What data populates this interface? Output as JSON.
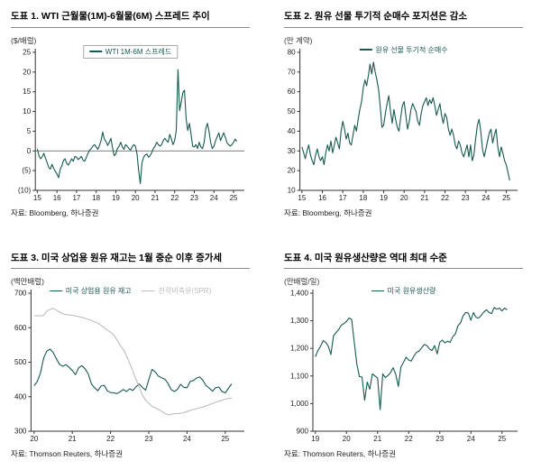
{
  "colors": {
    "accent_green": "#17594e",
    "spr_gray": "#bdbdbd",
    "axis": "#333333",
    "zero_line": "#555555"
  },
  "chart_data": [
    {
      "type": "line",
      "title": "도표 1. WTI 근월물(1M)-6월물(6M) 스프레드 추이",
      "unit": "($/배럴)",
      "source": "자료: Bloomberg, 하나증권",
      "legend": [
        {
          "label": "WTI 1M-6M 스프레드",
          "color": "#17594e"
        }
      ],
      "legend_box": true,
      "xlabel": "",
      "ylabel": "($/배럴)",
      "grid": false,
      "legend_position": "top-center",
      "ylim": [
        -10,
        25
      ],
      "yticks": [
        {
          "v": -10,
          "label": "(10)"
        },
        {
          "v": -5,
          "label": "(5)"
        },
        {
          "v": 0,
          "label": "0"
        },
        {
          "v": 5,
          "label": "5"
        },
        {
          "v": 10,
          "label": "10"
        },
        {
          "v": 15,
          "label": "15"
        },
        {
          "v": 20,
          "label": "20"
        },
        {
          "v": 25,
          "label": "25"
        }
      ],
      "xlim": [
        2014.9,
        2025.55
      ],
      "xticks": [
        {
          "v": 2015,
          "label": "15"
        },
        {
          "v": 2016,
          "label": "16"
        },
        {
          "v": 2017,
          "label": "17"
        },
        {
          "v": 2018,
          "label": "18"
        },
        {
          "v": 2019,
          "label": "19"
        },
        {
          "v": 2020,
          "label": "20"
        },
        {
          "v": 2021,
          "label": "21"
        },
        {
          "v": 2022,
          "label": "22"
        },
        {
          "v": 2023,
          "label": "23"
        },
        {
          "v": 2024,
          "label": "24"
        },
        {
          "v": 2025,
          "label": "25"
        }
      ],
      "zero_line": true,
      "series": [
        {
          "name": "WTI 1M-6M 스프레드",
          "color": "#17594e",
          "x_start": 2015.0,
          "x_step": 0.08333,
          "values": [
            0.5,
            -1.2,
            -2.0,
            -1.5,
            -0.6,
            -1.8,
            -3.0,
            -4.2,
            -4.6,
            -3.4,
            -4.4,
            -5.2,
            -5.8,
            -6.8,
            -4.6,
            -3.8,
            -2.4,
            -2.0,
            -3.2,
            -3.6,
            -2.8,
            -2.0,
            -2.6,
            -1.4,
            -1.6,
            -2.2,
            -1.8,
            -1.4,
            -2.4,
            -2.6,
            -1.6,
            -0.6,
            0.2,
            0.6,
            1.2,
            1.6,
            1.0,
            0.4,
            1.4,
            2.6,
            4.8,
            3.0,
            2.4,
            1.4,
            2.2,
            3.2,
            0.8,
            -1.2,
            -0.8,
            0.6,
            1.2,
            2.2,
            1.0,
            0.4,
            1.6,
            1.2,
            0.6,
            0.2,
            1.0,
            1.6,
            1.2,
            -0.8,
            -5.0,
            -8.3,
            -3.0,
            -1.6,
            -1.0,
            -0.8,
            -1.6,
            -1.2,
            -0.4,
            0.6,
            1.2,
            2.2,
            1.6,
            1.2,
            1.6,
            2.6,
            3.2,
            2.6,
            2.2,
            4.2,
            3.0,
            1.6,
            2.6,
            5.2,
            20.6,
            10.2,
            12.4,
            14.8,
            15.4,
            8.2,
            5.2,
            7.0,
            4.2,
            1.2,
            1.0,
            1.6,
            0.6,
            2.2,
            1.0,
            0.6,
            2.2,
            5.6,
            7.0,
            5.0,
            2.2,
            0.6,
            1.2,
            2.6,
            3.6,
            4.6,
            2.6,
            3.6,
            4.6,
            3.4,
            2.0,
            1.6,
            1.2,
            1.6,
            2.2,
            3.0,
            2.4
          ]
        }
      ]
    },
    {
      "type": "line",
      "title": "도표 2. 원유 선물 투기적 순매수 포지션은 감소",
      "unit": "(만 계약)",
      "source": "자료: Bloomberg, 하나증권",
      "legend": [
        {
          "label": "원유 선물 투기적 순매수",
          "color": "#17594e"
        }
      ],
      "legend_box": false,
      "xlabel": "",
      "ylabel": "(만 계약)",
      "grid": false,
      "legend_position": "top-center",
      "ylim": [
        10,
        80
      ],
      "yticks": [
        {
          "v": 10,
          "label": "10"
        },
        {
          "v": 20,
          "label": "20"
        },
        {
          "v": 30,
          "label": "30"
        },
        {
          "v": 40,
          "label": "40"
        },
        {
          "v": 50,
          "label": "50"
        },
        {
          "v": 60,
          "label": "60"
        },
        {
          "v": 70,
          "label": "70"
        },
        {
          "v": 80,
          "label": "80"
        }
      ],
      "xlim": [
        2014.9,
        2025.55
      ],
      "xticks": [
        {
          "v": 2015,
          "label": "15"
        },
        {
          "v": 2016,
          "label": "16"
        },
        {
          "v": 2017,
          "label": "17"
        },
        {
          "v": 2018,
          "label": "18"
        },
        {
          "v": 2019,
          "label": "19"
        },
        {
          "v": 2020,
          "label": "20"
        },
        {
          "v": 2021,
          "label": "21"
        },
        {
          "v": 2022,
          "label": "22"
        },
        {
          "v": 2023,
          "label": "23"
        },
        {
          "v": 2024,
          "label": "24"
        },
        {
          "v": 2025,
          "label": "25"
        }
      ],
      "zero_line": false,
      "series": [
        {
          "name": "원유 선물 투기적 순매수",
          "color": "#17594e",
          "x_start": 2015.0,
          "x_step": 0.08333,
          "values": [
            32,
            29,
            26,
            30,
            33,
            28,
            25,
            23,
            28,
            31,
            27,
            25,
            27,
            23,
            29,
            33,
            30,
            35,
            29,
            33,
            37,
            34,
            31,
            40,
            45,
            41,
            36,
            39,
            34,
            33,
            38,
            43,
            40,
            46,
            51,
            55,
            62,
            66,
            63,
            68,
            74,
            69,
            75,
            70,
            66,
            61,
            52,
            42,
            43,
            49,
            54,
            58,
            50,
            44,
            51,
            46,
            42,
            40,
            47,
            53,
            55,
            48,
            41,
            45,
            51,
            54,
            52,
            50,
            45,
            43,
            49,
            53,
            55,
            57,
            53,
            56,
            54,
            57,
            53,
            48,
            51,
            54,
            48,
            44,
            49,
            47,
            41,
            38,
            41,
            38,
            33,
            31,
            35,
            33,
            29,
            27,
            30,
            33,
            27,
            33,
            25,
            28,
            36,
            43,
            46,
            40,
            31,
            27,
            31,
            35,
            39,
            41,
            34,
            38,
            41,
            32,
            27,
            32,
            29,
            25,
            23,
            19,
            15
          ]
        }
      ]
    },
    {
      "type": "line",
      "title": "도표 3. 미국 상업용 원유 재고는 1월 중순 이후 증가세",
      "unit": "(백만배럴)",
      "source": "자료: Thomson Reuters, 하나증권",
      "legend": [
        {
          "label": "미국 상업용 원유 재고",
          "color": "#17594e"
        },
        {
          "label": "전략비축유(SPR)",
          "color": "#bdbdbd"
        }
      ],
      "legend_box": false,
      "xlabel": "",
      "ylabel": "(백만배럴)",
      "grid": false,
      "legend_position": "top-center",
      "ylim": [
        300,
        700
      ],
      "yticks": [
        {
          "v": 300,
          "label": "300"
        },
        {
          "v": 400,
          "label": "400"
        },
        {
          "v": 500,
          "label": "500"
        },
        {
          "v": 600,
          "label": "600"
        },
        {
          "v": 700,
          "label": "700"
        }
      ],
      "xlim": [
        2019.92,
        2025.5
      ],
      "xticks": [
        {
          "v": 2020,
          "label": "20"
        },
        {
          "v": 2021,
          "label": "21"
        },
        {
          "v": 2022,
          "label": "22"
        },
        {
          "v": 2023,
          "label": "23"
        },
        {
          "v": 2024,
          "label": "24"
        },
        {
          "v": 2025,
          "label": "25"
        }
      ],
      "zero_line": false,
      "series": [
        {
          "name": "미국 상업용 원유 재고",
          "color": "#17594e",
          "x_start": 2020.0,
          "x_step": 0.08333,
          "values": [
            432,
            444,
            469,
            512,
            532,
            538,
            528,
            510,
            494,
            488,
            493,
            485,
            476,
            464,
            484,
            490,
            481,
            466,
            437,
            426,
            417,
            431,
            433,
            417,
            412,
            411,
            409,
            414,
            421,
            415,
            423,
            418,
            429,
            437,
            427,
            419,
            449,
            479,
            472,
            460,
            455,
            451,
            439,
            421,
            415,
            421,
            436,
            427,
            426,
            444,
            447,
            454,
            457,
            447,
            432,
            425,
            416,
            426,
            428,
            415,
            411,
            424,
            437
          ]
        },
        {
          "name": "전략비축유(SPR)",
          "color": "#bdbdbd",
          "x_start": 2020.0,
          "x_step": 0.08333,
          "values": [
            635,
            635,
            634,
            636,
            648,
            653,
            656,
            651,
            645,
            640,
            638,
            637,
            636,
            634,
            632,
            630,
            627,
            624,
            621,
            617,
            613,
            607,
            600,
            593,
            587,
            579,
            566,
            549,
            537,
            519,
            497,
            474,
            450,
            427,
            405,
            390,
            381,
            372,
            368,
            363,
            358,
            352,
            347,
            349,
            351,
            351,
            352,
            354,
            357,
            360,
            363,
            365,
            368,
            370,
            373,
            377,
            380,
            384,
            387,
            390,
            393,
            395,
            396
          ]
        }
      ]
    },
    {
      "type": "line",
      "title": "도표 4. 미국 원유생산량은 역대 최대 수준",
      "unit": "(만배럴/일)",
      "source": "자료: Thomson Reuters, 하나증권",
      "legend": [
        {
          "label": "미국 원유생산량",
          "color": "#17594e"
        }
      ],
      "legend_box": false,
      "xlabel": "",
      "ylabel": "(만배럴/일)",
      "grid": false,
      "legend_position": "top-center",
      "ylim": [
        900,
        1400
      ],
      "yticks": [
        {
          "v": 900,
          "label": "900"
        },
        {
          "v": 1000,
          "label": "1,000"
        },
        {
          "v": 1100,
          "label": "1,100"
        },
        {
          "v": 1200,
          "label": "1,200"
        },
        {
          "v": 1300,
          "label": "1,300"
        },
        {
          "v": 1400,
          "label": "1,400"
        }
      ],
      "xlim": [
        2018.92,
        2025.5
      ],
      "xticks": [
        {
          "v": 2019,
          "label": "19"
        },
        {
          "v": 2020,
          "label": "20"
        },
        {
          "v": 2021,
          "label": "21"
        },
        {
          "v": 2022,
          "label": "22"
        },
        {
          "v": 2023,
          "label": "23"
        },
        {
          "v": 2024,
          "label": "24"
        },
        {
          "v": 2025,
          "label": "25"
        }
      ],
      "zero_line": false,
      "series": [
        {
          "name": "미국 원유생산량",
          "color": "#17594e",
          "x_start": 2019.0,
          "x_step": 0.08333,
          "values": [
            1170,
            1192,
            1208,
            1228,
            1222,
            1208,
            1178,
            1246,
            1258,
            1268,
            1284,
            1290,
            1298,
            1310,
            1305,
            1222,
            1142,
            1098,
            1096,
            1012,
            1078,
            1052,
            1108,
            1100,
            1092,
            978,
            1108,
            1094,
            1102,
            1112,
            1130,
            1106,
            1062,
            1132,
            1150,
            1168,
            1158,
            1154,
            1172,
            1186,
            1190,
            1202,
            1214,
            1210,
            1198,
            1192,
            1210,
            1180,
            1222,
            1230,
            1220,
            1226,
            1222,
            1242,
            1252,
            1282,
            1292,
            1318,
            1330,
            1328,
            1302,
            1330,
            1312,
            1310,
            1320,
            1332,
            1340,
            1330,
            1326,
            1348,
            1342,
            1346,
            1336,
            1346,
            1340
          ]
        }
      ]
    }
  ]
}
